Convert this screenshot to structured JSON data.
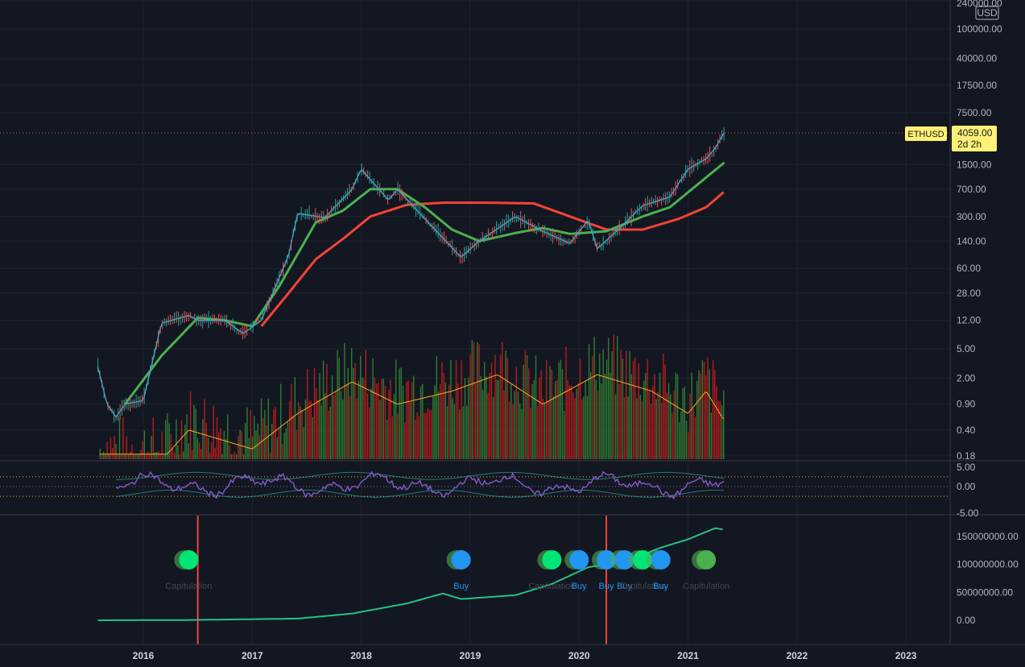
{
  "chart_data": [
    {
      "type": "candlestick",
      "symbol_label": "ETHUSD",
      "currency_label": "USD",
      "last_price_label": "4059.00",
      "time_label": "2d 2h",
      "log_scale": true,
      "y_ticks": [
        "240000.00",
        "100000.00",
        "40000.00",
        "17500.00",
        "7500.00",
        "1500.00",
        "700.00",
        "300.00",
        "140.00",
        "60.00",
        "28.00",
        "12.00",
        "5.00",
        "2.00",
        "0.90",
        "0.40",
        "0.18"
      ],
      "x_ticks": [
        "2016",
        "2017",
        "2018",
        "2019",
        "2020",
        "2021",
        "2022",
        "2023"
      ],
      "price_series": [
        {
          "date": "2015-08",
          "value": 2.8
        },
        {
          "date": "2015-09",
          "value": 0.9
        },
        {
          "date": "2015-10",
          "value": 0.6
        },
        {
          "date": "2015-11",
          "value": 0.9
        },
        {
          "date": "2016-01",
          "value": 1.0
        },
        {
          "date": "2016-03",
          "value": 11
        },
        {
          "date": "2016-06",
          "value": 14
        },
        {
          "date": "2016-07",
          "value": 12
        },
        {
          "date": "2016-10",
          "value": 12
        },
        {
          "date": "2016-12",
          "value": 8
        },
        {
          "date": "2017-02",
          "value": 12
        },
        {
          "date": "2017-05",
          "value": 90
        },
        {
          "date": "2017-06",
          "value": 330
        },
        {
          "date": "2017-09",
          "value": 290
        },
        {
          "date": "2017-12",
          "value": 700
        },
        {
          "date": "2018-01",
          "value": 1300
        },
        {
          "date": "2018-04",
          "value": 500
        },
        {
          "date": "2018-05",
          "value": 700
        },
        {
          "date": "2018-08",
          "value": 280
        },
        {
          "date": "2018-12",
          "value": 85
        },
        {
          "date": "2019-02",
          "value": 140
        },
        {
          "date": "2019-06",
          "value": 300
        },
        {
          "date": "2019-09",
          "value": 190
        },
        {
          "date": "2019-12",
          "value": 130
        },
        {
          "date": "2020-02",
          "value": 270
        },
        {
          "date": "2020-03",
          "value": 110
        },
        {
          "date": "2020-06",
          "value": 240
        },
        {
          "date": "2020-08",
          "value": 420
        },
        {
          "date": "2020-11",
          "value": 550
        },
        {
          "date": "2021-01",
          "value": 1300
        },
        {
          "date": "2021-03",
          "value": 1800
        },
        {
          "date": "2021-04",
          "value": 2500
        },
        {
          "date": "2021-05",
          "value": 4059
        }
      ],
      "ma_green": [
        {
          "date": "2015-11",
          "value": 0.9
        },
        {
          "date": "2016-03",
          "value": 4
        },
        {
          "date": "2016-07",
          "value": 13
        },
        {
          "date": "2016-10",
          "value": 12
        },
        {
          "date": "2017-01",
          "value": 10
        },
        {
          "date": "2017-04",
          "value": 35
        },
        {
          "date": "2017-08",
          "value": 250
        },
        {
          "date": "2017-11",
          "value": 360
        },
        {
          "date": "2018-02",
          "value": 700
        },
        {
          "date": "2018-05",
          "value": 700
        },
        {
          "date": "2018-08",
          "value": 400
        },
        {
          "date": "2018-11",
          "value": 200
        },
        {
          "date": "2019-02",
          "value": 140
        },
        {
          "date": "2019-06",
          "value": 180
        },
        {
          "date": "2019-09",
          "value": 210
        },
        {
          "date": "2019-12",
          "value": 175
        },
        {
          "date": "2020-04",
          "value": 190
        },
        {
          "date": "2020-08",
          "value": 300
        },
        {
          "date": "2020-11",
          "value": 400
        },
        {
          "date": "2021-02",
          "value": 800
        },
        {
          "date": "2021-05",
          "value": 1600
        }
      ],
      "ma_red": [
        {
          "date": "2017-02",
          "value": 10
        },
        {
          "date": "2017-05",
          "value": 28
        },
        {
          "date": "2017-08",
          "value": 80
        },
        {
          "date": "2017-11",
          "value": 150
        },
        {
          "date": "2018-02",
          "value": 300
        },
        {
          "date": "2018-06",
          "value": 430
        },
        {
          "date": "2018-10",
          "value": 460
        },
        {
          "date": "2019-03",
          "value": 460
        },
        {
          "date": "2019-08",
          "value": 450
        },
        {
          "date": "2019-12",
          "value": 300
        },
        {
          "date": "2020-04",
          "value": 200
        },
        {
          "date": "2020-08",
          "value": 200
        },
        {
          "date": "2020-12",
          "value": 280
        },
        {
          "date": "2021-03",
          "value": 400
        },
        {
          "date": "2021-05",
          "value": 650
        }
      ],
      "volume_peaks": [
        {
          "date": "2016-03",
          "value": 0.35
        },
        {
          "date": "2016-06",
          "value": 0.9
        },
        {
          "date": "2017-01",
          "value": 0.5
        },
        {
          "date": "2017-06",
          "value": 1.5
        },
        {
          "date": "2017-12",
          "value": 4
        },
        {
          "date": "2018-05",
          "value": 2
        },
        {
          "date": "2018-11",
          "value": 3
        },
        {
          "date": "2019-04",
          "value": 5
        },
        {
          "date": "2019-09",
          "value": 2
        },
        {
          "date": "2020-03",
          "value": 5
        },
        {
          "date": "2020-09",
          "value": 3
        },
        {
          "date": "2021-01",
          "value": 1.5
        },
        {
          "date": "2021-03",
          "value": 3
        },
        {
          "date": "2021-05",
          "value": 1.2
        }
      ]
    },
    {
      "type": "line",
      "panel": "oscillator",
      "y_ticks": [
        "5.00",
        "0.00",
        "-5.00"
      ]
    },
    {
      "type": "line",
      "panel": "lower",
      "y_ticks": [
        "150000000.00",
        "100000000.00",
        "50000000.00",
        "0.00"
      ],
      "series": [
        {
          "date": "2015-08",
          "value": 0
        },
        {
          "date": "2016-06",
          "value": 500000
        },
        {
          "date": "2017-06",
          "value": 3000000
        },
        {
          "date": "2017-12",
          "value": 12000000
        },
        {
          "date": "2018-06",
          "value": 30000000
        },
        {
          "date": "2018-10",
          "value": 48000000
        },
        {
          "date": "2018-12",
          "value": 38000000
        },
        {
          "date": "2019-06",
          "value": 45000000
        },
        {
          "date": "2019-10",
          "value": 65000000
        },
        {
          "date": "2020-02",
          "value": 95000000
        },
        {
          "date": "2020-06",
          "value": 105000000
        },
        {
          "date": "2020-10",
          "value": 130000000
        },
        {
          "date": "2021-01",
          "value": 145000000
        },
        {
          "date": "2021-04",
          "value": 165000000
        },
        {
          "date": "2021-05",
          "value": 162000000
        }
      ],
      "signals": [
        {
          "date": "2016-06",
          "label": "Capitulation",
          "color": "#00e676",
          "text_color": "#434651"
        },
        {
          "date": "2018-12",
          "label": "Buy",
          "color": "#2196f3",
          "text_color": "#2196f3"
        },
        {
          "date": "2019-10",
          "label": "Capitulation",
          "color": "#00e676",
          "text_color": "#434651"
        },
        {
          "date": "2020-01",
          "label": "Buy",
          "color": "#2196f3",
          "text_color": "#2196f3"
        },
        {
          "date": "2020-04",
          "label": "Buy",
          "color": "#2196f3",
          "text_color": "#2196f3"
        },
        {
          "date": "2020-06",
          "label": "Buy",
          "color": "#2196f3",
          "text_color": "#2196f3"
        },
        {
          "date": "2020-08",
          "label": "Capitulation",
          "color": "#00e676",
          "text_color": "#434651"
        },
        {
          "date": "2020-10",
          "label": "Buy",
          "color": "#2196f3",
          "text_color": "#2196f3"
        },
        {
          "date": "2021-03",
          "label": "Capitulation",
          "color": "#4caf50",
          "text_color": "#434651"
        }
      ],
      "vertical_markers": [
        "2016-07",
        "2020-04"
      ]
    }
  ],
  "colors": {
    "background": "#131722",
    "grid": "#1e222d",
    "up": "#26a69a",
    "down": "#ef5350",
    "price_line": "#4aa3c6",
    "ma_green": "#4caf50",
    "ma_red": "#f44336",
    "vol_green": "#2e7d32",
    "vol_red": "#b71c1c",
    "vol_ma": "#ffa726",
    "price_label_bg": "#fff176",
    "osc_line": "#7e57c2",
    "osc_band": "#26a69a",
    "lower_line": "#26c281",
    "marker": "#f44336"
  }
}
